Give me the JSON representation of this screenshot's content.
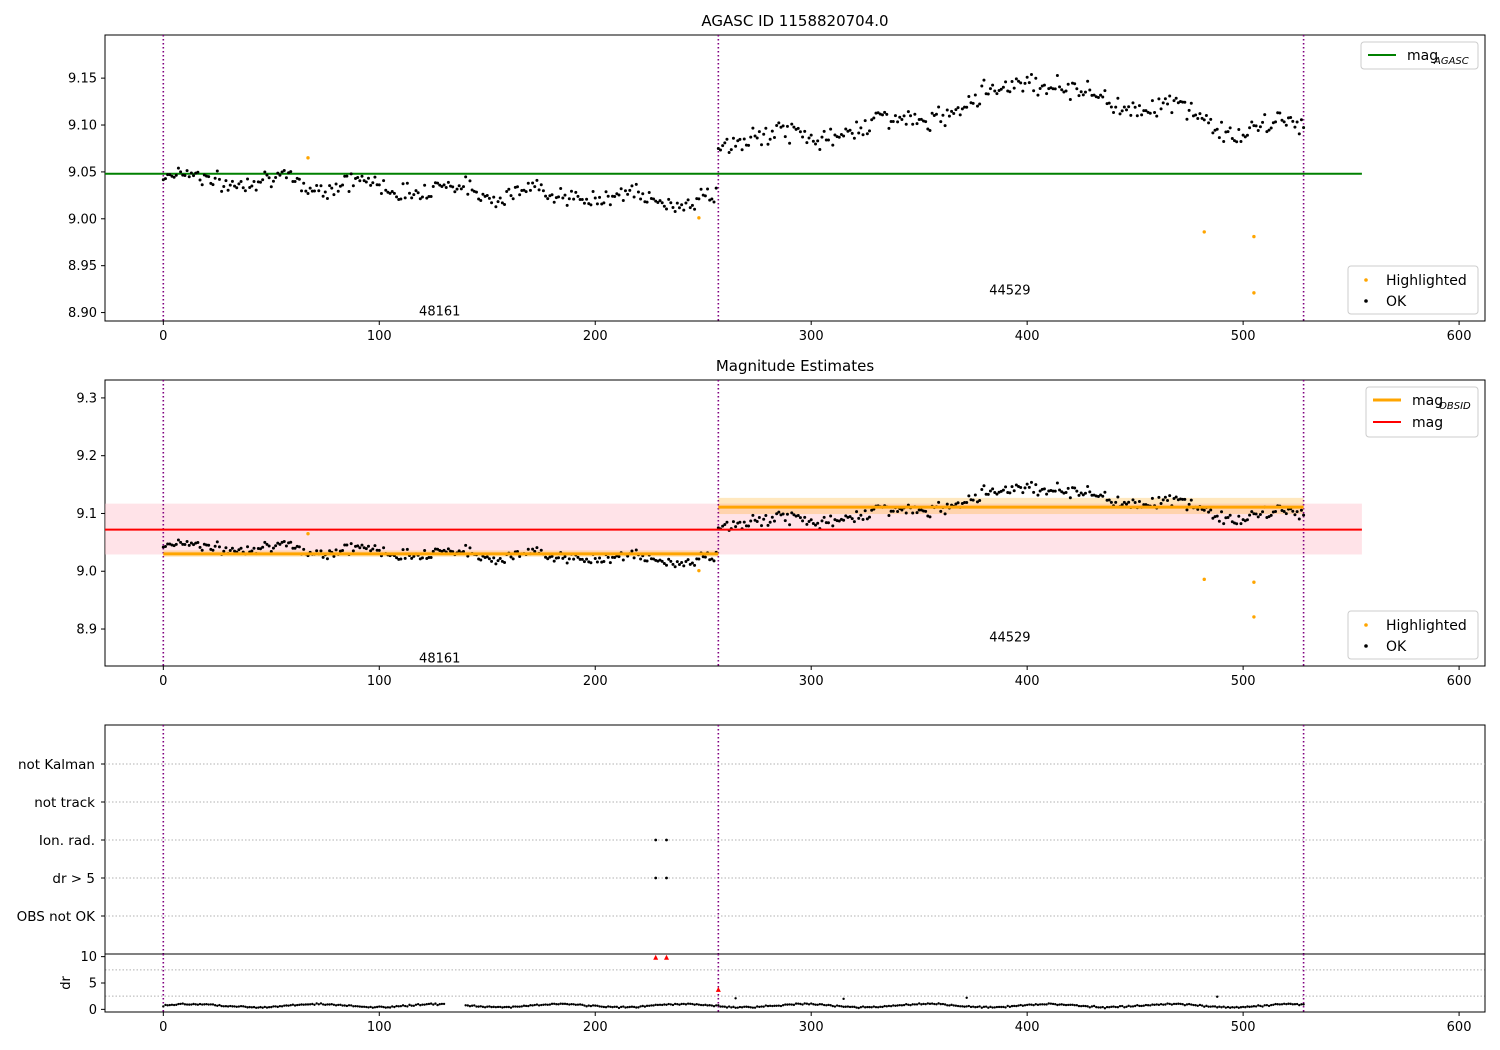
{
  "colors": {
    "agasc_line": "#008000",
    "obsid_line": "#ffa500",
    "mag_line": "#ff0000",
    "mag_band": "#ffc0cb",
    "points_ok": "#000000",
    "points_highlighted": "#ffa500",
    "obs_boundary": "#800080",
    "flag_point": "#000000",
    "dr_marker": "#ff0000",
    "grid": "#b0b0b0"
  },
  "chart_data": [
    {
      "type": "scatter",
      "title": "AGASC ID 1158820704.0",
      "xlim": [
        -27,
        612
      ],
      "ylim": [
        8.891,
        9.196
      ],
      "xticks": [
        "0",
        "100",
        "200",
        "300",
        "400",
        "500",
        "600"
      ],
      "yticks": [
        "8.90",
        "8.95",
        "9.00",
        "9.05",
        "9.10",
        "9.15"
      ],
      "obs_boundaries": [
        0,
        257,
        528
      ],
      "obs_labels": [
        {
          "text": "48161",
          "x": 128,
          "y": 8.897
        },
        {
          "text": "44529",
          "x": 392,
          "y": 8.919
        }
      ],
      "mag_agasc": 9.048,
      "mag_agasc_range": [
        -27,
        555
      ],
      "highlighted": [
        {
          "x": 67,
          "y": 9.065
        },
        {
          "x": 248,
          "y": 9.001
        },
        {
          "x": 482,
          "y": 8.986
        },
        {
          "x": 505,
          "y": 8.981
        },
        {
          "x": 505,
          "y": 8.921
        }
      ],
      "ok_series": {
        "segment1_x": [
          0,
          256
        ],
        "segment1_trend_y": [
          9.045,
          9.018
        ],
        "segment1_scatter": 0.011,
        "segment2_x": [
          257,
          528
        ],
        "segment2_knots_x": [
          257,
          300,
          350,
          375,
          390,
          400,
          420,
          460,
          480,
          500,
          528
        ],
        "segment2_knots_y": [
          9.085,
          9.088,
          9.108,
          9.122,
          9.142,
          9.155,
          9.133,
          9.12,
          9.108,
          9.092,
          9.101
        ],
        "segment2_scatter": 0.012
      },
      "legend": {
        "position": "top-right",
        "entries": [
          "mag",
          "AGASC"
        ]
      },
      "legend2": {
        "position": "bottom-right",
        "entries": [
          "Highlighted",
          "OK"
        ]
      }
    },
    {
      "type": "scatter",
      "title": "Magnitude Estimates",
      "xlim": [
        -27,
        612
      ],
      "ylim": [
        8.836,
        9.331
      ],
      "xticks": [
        "0",
        "100",
        "200",
        "300",
        "400",
        "500",
        "600"
      ],
      "yticks": [
        "8.9",
        "9.0",
        "9.1",
        "9.2",
        "9.3"
      ],
      "obs_boundaries": [
        0,
        257,
        528
      ],
      "obs_labels": [
        {
          "text": "48161",
          "x": 128,
          "y": 8.842
        },
        {
          "text": "44529",
          "x": 392,
          "y": 8.878
        }
      ],
      "mag": 9.072,
      "mag_band": [
        9.029,
        9.117
      ],
      "mag_range": [
        -27,
        555
      ],
      "mag_obsid": [
        {
          "x0": 0,
          "x1": 257,
          "y": 9.03,
          "band": [
            9.025,
            9.036
          ]
        },
        {
          "x0": 257,
          "x1": 528,
          "y": 9.111,
          "band": [
            9.099,
            9.127
          ]
        }
      ],
      "highlighted": [
        {
          "x": 67,
          "y": 9.065
        },
        {
          "x": 248,
          "y": 9.001
        },
        {
          "x": 482,
          "y": 8.986
        },
        {
          "x": 505,
          "y": 8.981
        },
        {
          "x": 505,
          "y": 8.921
        }
      ],
      "legend": {
        "position": "top-right",
        "entries": [
          "mag",
          "OBSID",
          "mag"
        ]
      },
      "legend2": {
        "position": "bottom-right",
        "entries": [
          "Highlighted",
          "OK"
        ]
      }
    },
    {
      "type": "scatter",
      "xlim": [
        -27,
        612
      ],
      "categories": [
        "not Kalman",
        "not track",
        "Ion. rad.",
        "dr > 5",
        "OBS not OK"
      ],
      "flag_points": [
        {
          "category": "Ion. rad.",
          "x": 228
        },
        {
          "category": "Ion. rad.",
          "x": 233
        },
        {
          "category": "dr > 5",
          "x": 228
        },
        {
          "category": "dr > 5",
          "x": 233
        }
      ],
      "obs_boundaries": [
        0,
        257,
        528
      ]
    },
    {
      "type": "scatter",
      "xlim": [
        -27,
        612
      ],
      "ylim": [
        -0.5,
        10.5
      ],
      "xticks": [
        "0",
        "100",
        "200",
        "300",
        "400",
        "500",
        "600"
      ],
      "yticks": [
        "0",
        "5",
        "10"
      ],
      "ylabel": "dr",
      "dr_markers": [
        {
          "x": 228,
          "y": 9.8
        },
        {
          "x": 233,
          "y": 9.8
        },
        {
          "x": 257,
          "y": 3.7
        }
      ],
      "dr_baseline": 0.7,
      "dr_scatter": 0.4,
      "obs_boundaries": [
        0,
        257,
        528
      ]
    }
  ],
  "labels": {
    "legend_mag": "mag",
    "legend_agasc_sub": "AGASC",
    "legend_obsid_sub": "OBSID",
    "legend_highlighted": "Highlighted",
    "legend_ok": "OK"
  }
}
